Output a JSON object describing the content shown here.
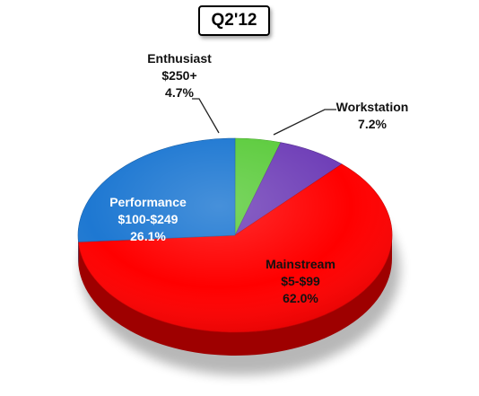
{
  "chart_data": {
    "type": "pie",
    "title": "Q2'12",
    "slices": [
      {
        "label": "Enthusiast",
        "range": "$250+",
        "value": 4.7,
        "value_text": "4.7%",
        "color": "#5dcc3e"
      },
      {
        "label": "Workstation",
        "range": "",
        "value": 7.2,
        "value_text": "7.2%",
        "color": "#7040b8"
      },
      {
        "label": "Mainstream",
        "range": "$5-$99",
        "value": 62.0,
        "value_text": "62.0%",
        "color": "#ff0000"
      },
      {
        "label": "Performance",
        "range": "$100-$249",
        "value": 26.1,
        "value_text": "26.1%",
        "color": "#1e78d2"
      }
    ],
    "style": "3d"
  }
}
